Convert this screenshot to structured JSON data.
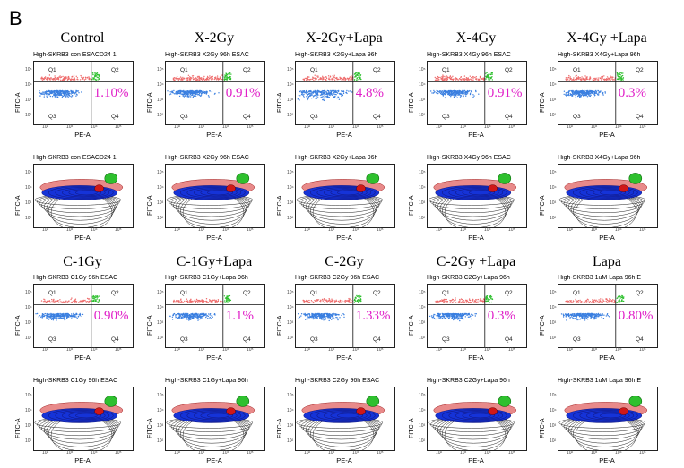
{
  "figure": {
    "panel_letter": "B",
    "x_axis_label": "PE-A",
    "y_axis_label": "FITC-A",
    "quadrants": [
      "Q1",
      "Q2",
      "Q3",
      "Q4"
    ],
    "x_tick_labels": [
      "10²",
      "10³",
      "10⁴",
      "10⁵"
    ],
    "y_tick_labels": [
      "10²",
      "10³",
      "10⁴",
      "10⁵"
    ]
  },
  "chart_data": {
    "type": "scatter",
    "xlabel": "PE-A",
    "ylabel": "FITC-A",
    "plot_kind": [
      "quadrant dot plot",
      "contour density plot"
    ],
    "colors": {
      "Q1": "#ee6b6b",
      "Q2": "#2ec02e",
      "Q3": "#3a7fe0",
      "contour_blue": "#1533d8",
      "contour_red": "#d01818",
      "percent": "#e020c8"
    },
    "conditions": [
      {
        "label": "Control",
        "plot_title": "High-SKRB3 con ESACD24 1",
        "q2_percent": "1.10%"
      },
      {
        "label": "X-2Gy",
        "plot_title": "High-SKRB3 X2Gy 96h ESAC",
        "q2_percent": "0.91%"
      },
      {
        "label": "X-2Gy+Lapa",
        "plot_title": "High-SKRB3 X2Gy+Lapa 96h",
        "q2_percent": "4.8%"
      },
      {
        "label": "X-4Gy",
        "plot_title": "High-SKRB3 X4Gy 96h ESAC",
        "q2_percent": "0.91%"
      },
      {
        "label": "X-4Gy +Lapa",
        "plot_title": "High-SKRB3 X4Gy+Lapa 96h",
        "q2_percent": "0.3%"
      },
      {
        "label": "C-1Gy",
        "plot_title": "High-SKRB3 C1Gy 96h ESAC",
        "q2_percent": "0.90%"
      },
      {
        "label": "C-1Gy+Lapa",
        "plot_title": "High-SKRB3 C1Gy+Lapa 96h",
        "q2_percent": "1.1%"
      },
      {
        "label": "C-2Gy",
        "plot_title": "High-SKRB3 C2Gy 96h ESAC",
        "q2_percent": "1.33%"
      },
      {
        "label": "C-2Gy +Lapa",
        "plot_title": "High-SKRB3 C2Gy+Lapa 96h",
        "q2_percent": "0.3%"
      },
      {
        "label": "Lapa",
        "plot_title": "High-SKRB3 1uM Lapa 96h E",
        "q2_percent": "0.80%"
      }
    ]
  }
}
